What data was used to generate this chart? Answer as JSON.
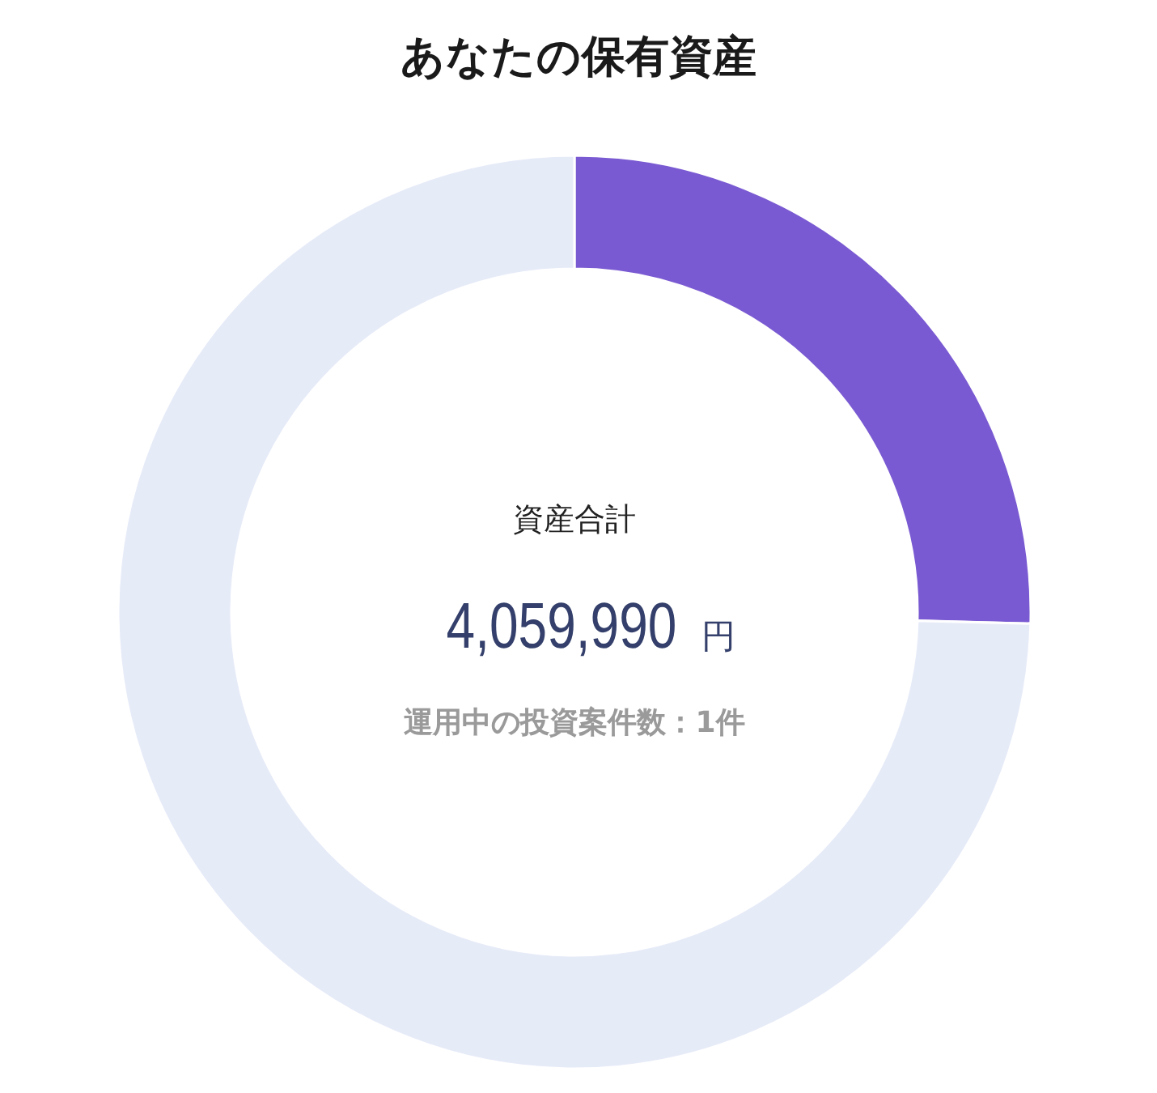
{
  "chart_data": {
    "type": "donut",
    "title": "あなたの保有資産",
    "categories": [
      null,
      null
    ],
    "values": [
      25.4,
      74.6
    ],
    "colors": [
      "#7a5ad2",
      "#e6ebf8"
    ],
    "annotations": [
      "資産合計",
      "4,059,990",
      "円",
      "運用中の投資案件数：1件"
    ]
  }
}
